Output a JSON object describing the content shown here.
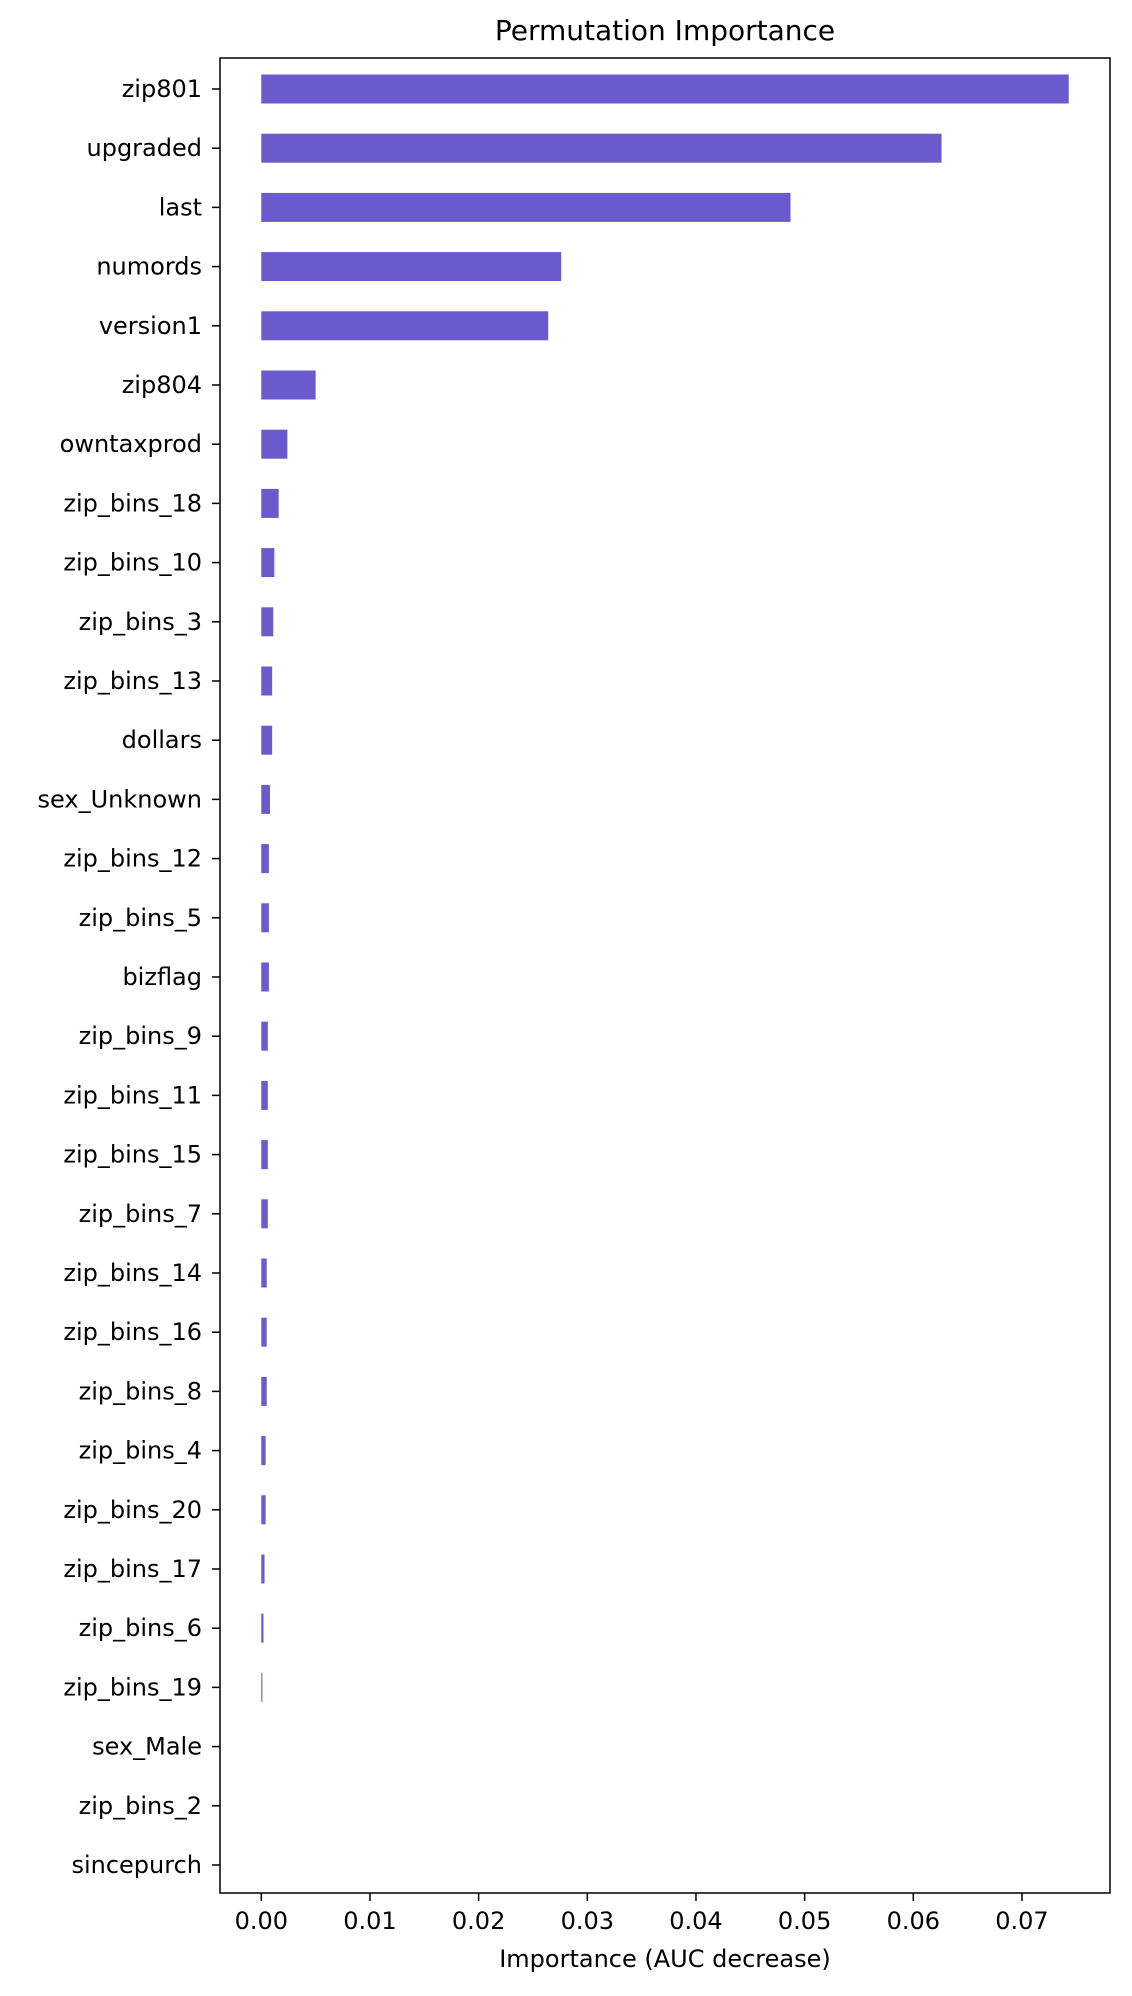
{
  "chart_data": {
    "type": "bar",
    "orientation": "horizontal",
    "title": "Permutation Importance",
    "xlabel": "Importance (AUC decrease)",
    "ylabel": "",
    "xlim": [
      -0.0038,
      0.0781
    ],
    "xticks": [
      0.0,
      0.01,
      0.02,
      0.03,
      0.04,
      0.05,
      0.06,
      0.07
    ],
    "xtick_labels": [
      "0.00",
      "0.01",
      "0.02",
      "0.03",
      "0.04",
      "0.05",
      "0.06",
      "0.07"
    ],
    "grid": false,
    "bar_color": "#6a5acd",
    "categories": [
      "zip801",
      "upgraded",
      "last",
      "numords",
      "version1",
      "zip804",
      "owntaxprod",
      "zip_bins_18",
      "zip_bins_10",
      "zip_bins_3",
      "zip_bins_13",
      "dollars",
      "sex_Unknown",
      "zip_bins_12",
      "zip_bins_5",
      "bizflag",
      "zip_bins_9",
      "zip_bins_11",
      "zip_bins_15",
      "zip_bins_7",
      "zip_bins_14",
      "zip_bins_16",
      "zip_bins_8",
      "zip_bins_4",
      "zip_bins_20",
      "zip_bins_17",
      "zip_bins_6",
      "zip_bins_19",
      "sex_Male",
      "zip_bins_2",
      "sincepurch"
    ],
    "values": [
      0.0743,
      0.0626,
      0.0487,
      0.0276,
      0.0264,
      0.005,
      0.0024,
      0.0016,
      0.0012,
      0.0011,
      0.001,
      0.001,
      0.0008,
      0.0007,
      0.0007,
      0.0007,
      0.0006,
      0.0006,
      0.0006,
      0.0006,
      0.0005,
      0.0005,
      0.0005,
      0.0004,
      0.0004,
      0.0003,
      0.0002,
      0.0001,
      0.0,
      0.0,
      0.0
    ]
  }
}
